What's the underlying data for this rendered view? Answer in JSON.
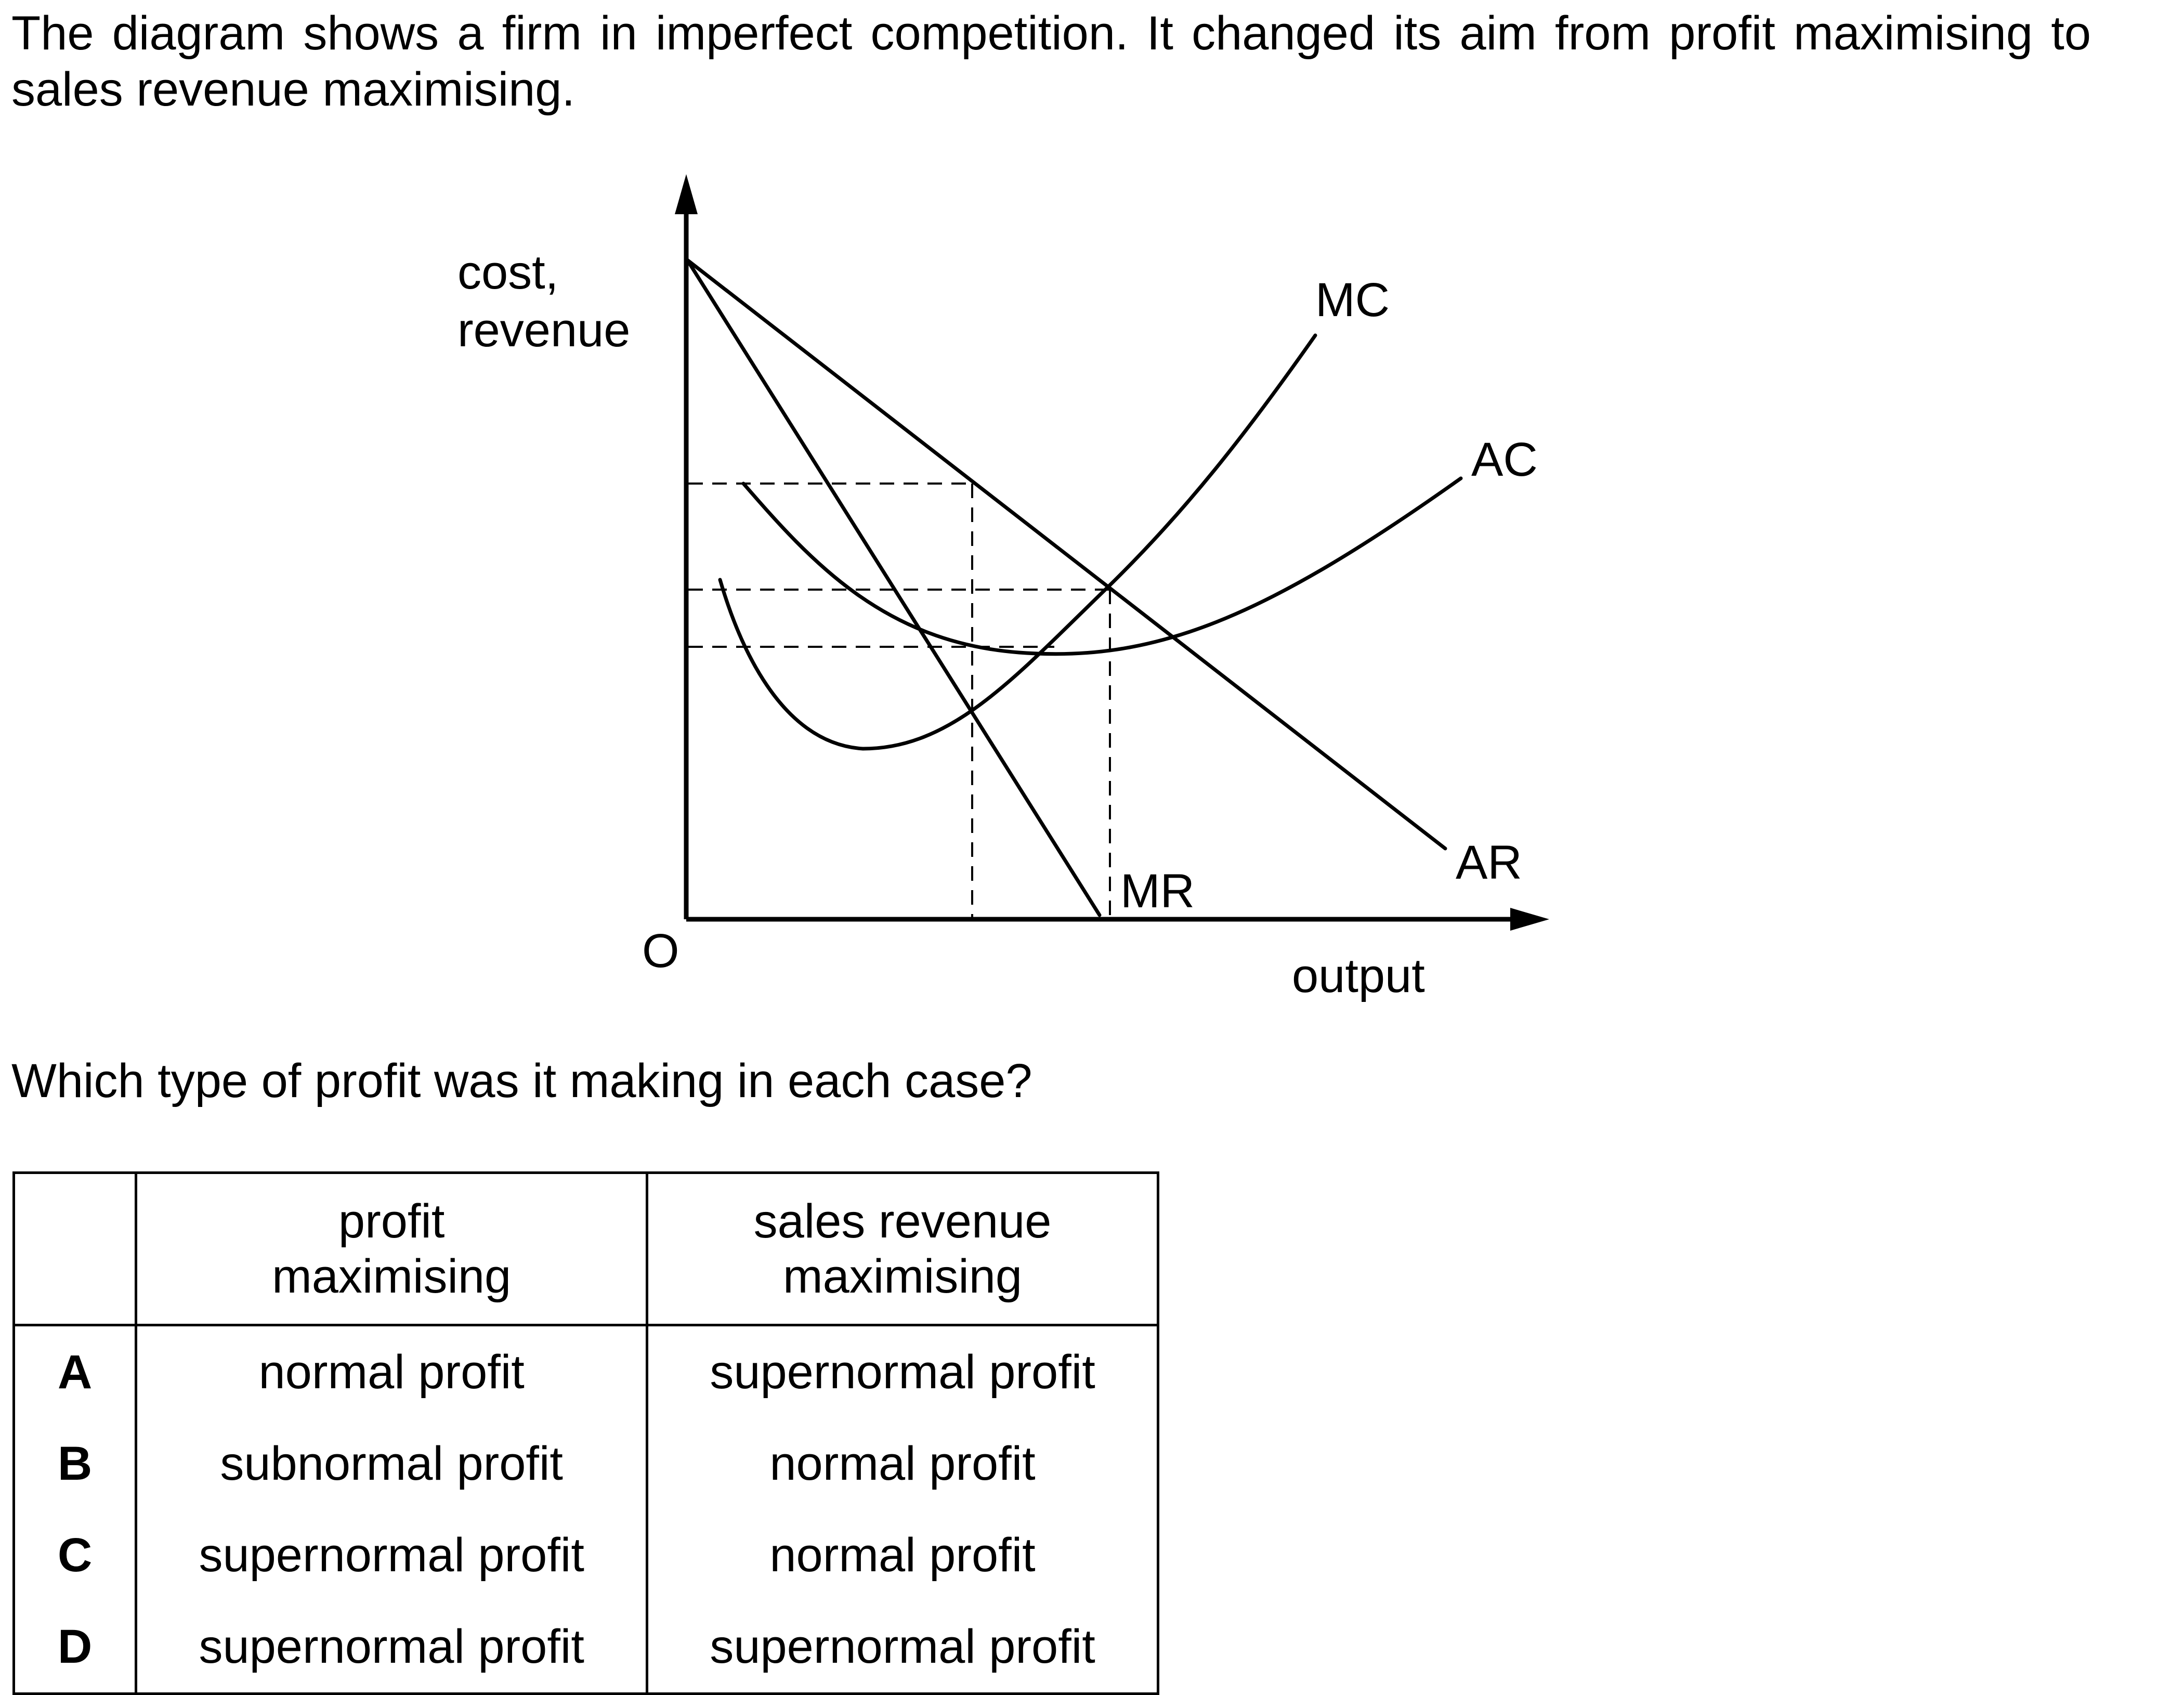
{
  "question": {
    "intro_line1": "The diagram shows a firm in imperfect competition. It changed its aim from profit maximising to",
    "intro_line2": "sales revenue maximising.",
    "prompt": "Which type of profit was it making in each case?"
  },
  "diagram": {
    "y_axis_label_line1": "cost,",
    "y_axis_label_line2": "revenue",
    "x_axis_label": "output",
    "origin_label": "O",
    "curves": {
      "mc": "MC",
      "ac": "AC",
      "ar": "AR",
      "mr": "MR"
    }
  },
  "table": {
    "headers": {
      "profit_max_line1": "profit",
      "profit_max_line2": "maximising",
      "sales_rev_line1": "sales revenue",
      "sales_rev_line2": "maximising"
    },
    "rows": [
      {
        "key": "A",
        "profit_max": "normal profit",
        "sales_rev": "supernormal profit"
      },
      {
        "key": "B",
        "profit_max": "subnormal profit",
        "sales_rev": "normal profit"
      },
      {
        "key": "C",
        "profit_max": "supernormal profit",
        "sales_rev": "normal profit"
      },
      {
        "key": "D",
        "profit_max": "supernormal profit",
        "sales_rev": "supernormal profit"
      }
    ]
  }
}
